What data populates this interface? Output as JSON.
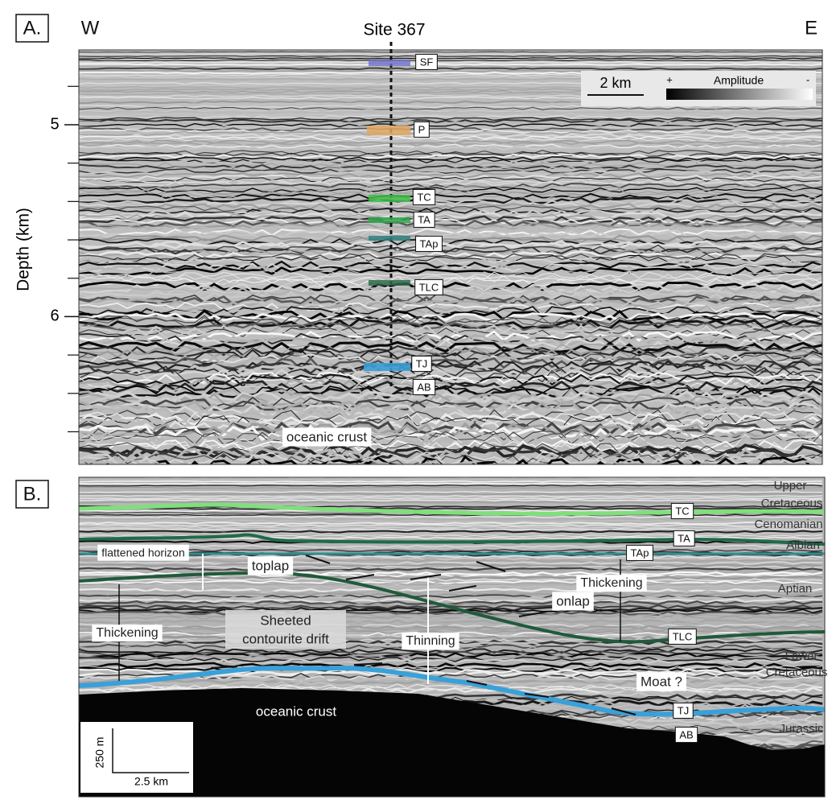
{
  "panel_a": {
    "label": "A.",
    "west": "W",
    "east": "E",
    "site": "Site 367",
    "y_axis_label": "Depth (km)",
    "ylim": [
      4.61,
      6.77
    ],
    "yticks": [
      5,
      6
    ],
    "minor_ticks": [
      4.8,
      5.2,
      5.4,
      5.6,
      5.8,
      6.2,
      6.4,
      6.6
    ],
    "horizons": [
      "SF",
      "P",
      "TC",
      "TA",
      "TAp",
      "TLC",
      "TJ",
      "AB"
    ],
    "crust_label": "oceanic crust",
    "scale": "2 km",
    "amplitude": {
      "plus": "+",
      "title": "Amplitude",
      "minus": "-"
    }
  },
  "panel_b": {
    "label": "B.",
    "horizons": [
      "TC",
      "TA",
      "TAp",
      "TLC",
      "TJ",
      "AB"
    ],
    "formations": [
      [
        "Upper",
        "Cretaceous"
      ],
      [
        "Cenomanian"
      ],
      [
        "Albian"
      ],
      [
        "Aptian"
      ],
      [
        "Lower",
        "Cretaceous"
      ],
      [
        "Jurassic"
      ]
    ],
    "annotations": [
      "flattened horizon",
      "toplap",
      "Thickening",
      [
        "Sheeted",
        "contourite drift"
      ],
      "Thinning",
      "onlap",
      "Thickening",
      "Moat ?"
    ],
    "crust_label": "oceanic crust",
    "scale_vertical": "250 m",
    "scale_horizontal": "2.5 km"
  }
}
